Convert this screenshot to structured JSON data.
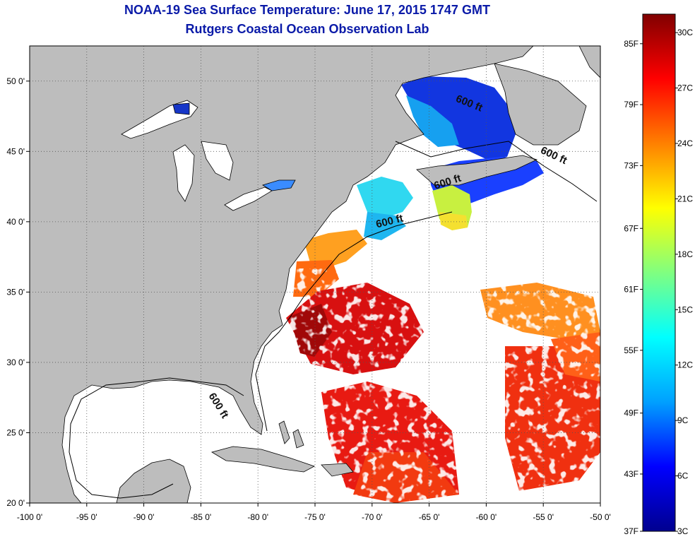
{
  "header": {
    "title": "NOAA-19 Sea Surface Temperature:  June 17, 2015 1747 GMT",
    "subtitle": "Rutgers Coastal Ocean Observation Lab"
  },
  "map": {
    "lon_range": [
      -100,
      -50
    ],
    "lat_range": [
      20,
      52.5
    ],
    "lon_ticks": [
      {
        "value": -100,
        "label": "-100 0'"
      },
      {
        "value": -95,
        "label": "-95 0'"
      },
      {
        "value": -90,
        "label": "-90 0'"
      },
      {
        "value": -85,
        "label": "-85 0'"
      },
      {
        "value": -80,
        "label": "-80 0'"
      },
      {
        "value": -75,
        "label": "-75 0'"
      },
      {
        "value": -70,
        "label": "-70 0'"
      },
      {
        "value": -65,
        "label": "-65 0'"
      },
      {
        "value": -60,
        "label": "-60 0'"
      },
      {
        "value": -55,
        "label": "-55 0'"
      },
      {
        "value": -50,
        "label": "-50 0'"
      }
    ],
    "lat_ticks": [
      {
        "value": 20,
        "label": "20 0'"
      },
      {
        "value": 25,
        "label": "25 0'"
      },
      {
        "value": 30,
        "label": "30 0'"
      },
      {
        "value": 35,
        "label": "35 0'"
      },
      {
        "value": 40,
        "label": "40 0'"
      },
      {
        "value": 45,
        "label": "45 0'"
      },
      {
        "value": 50,
        "label": "50 0'"
      }
    ],
    "grid": "dotted",
    "contour_labels": [
      {
        "text": "600 ft",
        "lon": -61.6,
        "lat": 48.2,
        "angle": 22
      },
      {
        "text": "600 ft",
        "lon": -54.2,
        "lat": 44.5,
        "angle": 25
      },
      {
        "text": "600 ft",
        "lon": -63.3,
        "lat": 42.6,
        "angle": -18
      },
      {
        "text": "600 ft",
        "lon": -68.4,
        "lat": 39.8,
        "angle": -14
      },
      {
        "text": "600 ft",
        "lon": -83.7,
        "lat": 26.8,
        "angle": 58
      }
    ],
    "colors": {
      "land": "#bdbdbd",
      "ocean": "#ffffff",
      "coast": "#000000",
      "title": "#0a1aa8"
    }
  },
  "colorbar": {
    "range_c": [
      3,
      31
    ],
    "fahrenheit_ticks": [
      {
        "value_c": 3,
        "label": "37F"
      },
      {
        "value_c": 6.1,
        "label": "43F"
      },
      {
        "value_c": 9.4,
        "label": "49F"
      },
      {
        "value_c": 12.8,
        "label": "55F"
      },
      {
        "value_c": 16.1,
        "label": "61F"
      },
      {
        "value_c": 19.4,
        "label": "67F"
      },
      {
        "value_c": 22.8,
        "label": "73F"
      },
      {
        "value_c": 26.1,
        "label": "79F"
      },
      {
        "value_c": 29.4,
        "label": "85F"
      }
    ],
    "celsius_ticks": [
      {
        "value_c": 3,
        "label": "3C"
      },
      {
        "value_c": 6,
        "label": "6C"
      },
      {
        "value_c": 9,
        "label": "9C"
      },
      {
        "value_c": 12,
        "label": "12C"
      },
      {
        "value_c": 15,
        "label": "15C"
      },
      {
        "value_c": 18,
        "label": "18C"
      },
      {
        "value_c": 21,
        "label": "21C"
      },
      {
        "value_c": 24,
        "label": "24C"
      },
      {
        "value_c": 27,
        "label": "27C"
      },
      {
        "value_c": 30,
        "label": "30C"
      }
    ],
    "colormap": [
      "#00008f",
      "#0000ff",
      "#00a0ff",
      "#00ffff",
      "#80ff80",
      "#ffff00",
      "#ff8000",
      "#ff0000",
      "#800000"
    ]
  }
}
